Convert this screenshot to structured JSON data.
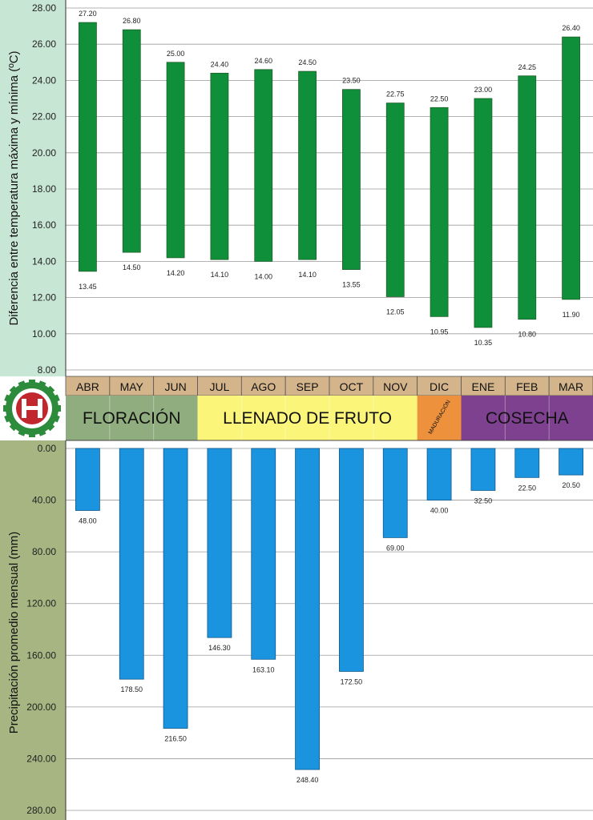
{
  "chart_data": [
    {
      "type": "bar",
      "subtype": "floating-range",
      "ylabel": "Diferencia entre temperatura máxima y mínima (ºC)",
      "ylim": [
        8,
        28
      ],
      "yticks": [
        "8.00",
        "10.00",
        "12.00",
        "14.00",
        "16.00",
        "18.00",
        "20.00",
        "22.00",
        "24.00",
        "26.00",
        "28.00"
      ],
      "categories": [
        "ABR",
        "MAY",
        "JUN",
        "JUL",
        "AGO",
        "SEP",
        "OCT",
        "NOV",
        "DIC",
        "ENE",
        "FEB",
        "MAR"
      ],
      "series": [
        {
          "role": "max",
          "values": [
            27.2,
            26.8,
            25.0,
            24.4,
            24.6,
            24.5,
            23.5,
            22.75,
            22.5,
            23.0,
            24.25,
            26.4
          ],
          "labels": [
            "27.20",
            "26.80",
            "25.00",
            "24.40",
            "24.60",
            "24.50",
            "23.50",
            "22.75",
            "22.50",
            "23.00",
            "24.25",
            "26.40"
          ]
        },
        {
          "role": "min",
          "values": [
            13.45,
            14.5,
            14.2,
            14.1,
            14.0,
            14.1,
            13.55,
            12.05,
            10.95,
            10.35,
            10.8,
            11.9
          ],
          "labels": [
            "13.45",
            "14.50",
            "14.20",
            "14.10",
            "14.00",
            "14.10",
            "13.55",
            "12.05",
            "10.95",
            "10.35",
            "10.80",
            "11.90"
          ]
        }
      ],
      "bar_color": "#0f8f3a",
      "grid": true,
      "background": "#c8e6d4"
    },
    {
      "type": "bar",
      "orientation": "downward",
      "ylabel": "Precipitación promedio mensual (mm)",
      "ylim": [
        0,
        280
      ],
      "yticks": [
        "0.00",
        "40.00",
        "80.00",
        "120.00",
        "160.00",
        "200.00",
        "240.00",
        "280.00"
      ],
      "categories": [
        "ABR",
        "MAY",
        "JUN",
        "JUL",
        "AGO",
        "SEP",
        "OCT",
        "NOV",
        "DIC",
        "ENE",
        "FEB",
        "MAR"
      ],
      "values": [
        48.0,
        178.5,
        216.5,
        146.3,
        163.1,
        248.4,
        172.5,
        69.0,
        40.0,
        32.5,
        22.5,
        20.5
      ],
      "labels": [
        "48.00",
        "178.50",
        "216.50",
        "146.30",
        "163.10",
        "248.40",
        "172.50",
        "69.00",
        "40.00",
        "32.50",
        "22.50",
        "20.50"
      ],
      "bar_color": "#1a94df",
      "grid": true,
      "background": "#a7b582"
    }
  ],
  "months_band": {
    "months": [
      "ABR",
      "MAY",
      "JUN",
      "JUL",
      "AGO",
      "SEP",
      "OCT",
      "NOV",
      "DIC",
      "ENE",
      "FEB",
      "MAR"
    ],
    "color": "#d4b48a"
  },
  "phases": [
    {
      "label": "FLORACIÓN",
      "span_months": 3,
      "color": "#8fad7e",
      "small": false
    },
    {
      "label": "LLENADO DE FRUTO",
      "span_months": 5,
      "color": "#fbf67a",
      "small": false
    },
    {
      "label": "MADURACIÓN",
      "span_months": 1,
      "color": "#ee913d",
      "small": true
    },
    {
      "label": "COSECHA",
      "span_months": 3,
      "color": "#7e4190",
      "small": false
    }
  ],
  "logo": {
    "text": "H",
    "ring_color": "#2d8c3c",
    "center_color": "#c1272d"
  }
}
